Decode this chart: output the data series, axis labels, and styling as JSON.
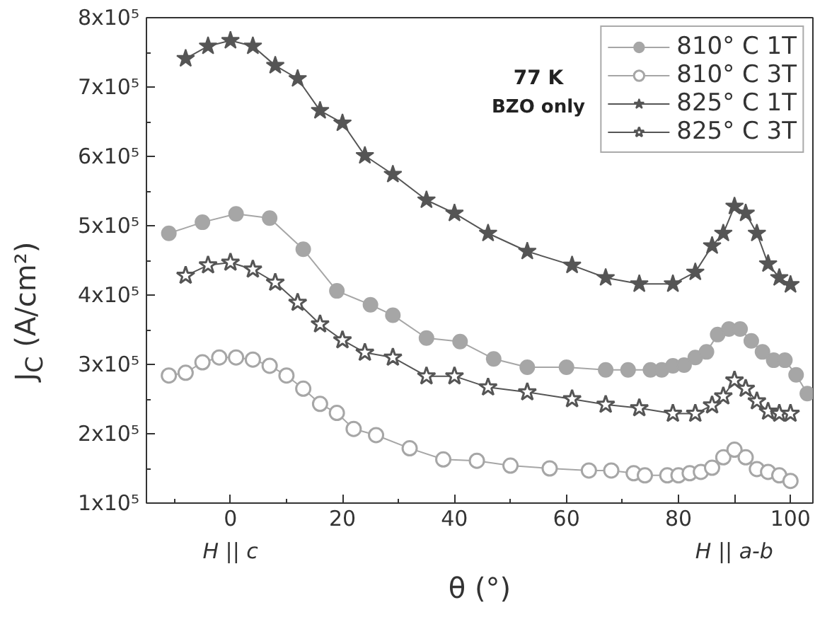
{
  "chart_data": {
    "type": "line",
    "xlabel": "θ (°)",
    "ylabel": "J$_{C}$ (A/cm²)",
    "xlim": [
      -15,
      104
    ],
    "ylim": [
      100000,
      800000
    ],
    "xticks": [
      0,
      20,
      40,
      60,
      80,
      100,
      {
        "value": 90,
        "label": null
      }
    ],
    "yticks": [
      {
        "value": 100000,
        "label": "1x10⁵"
      },
      {
        "value": 200000,
        "label": "2x10⁵"
      },
      {
        "value": 300000,
        "label": "3x10⁵"
      },
      {
        "value": 400000,
        "label": "4x10⁵"
      },
      {
        "value": 500000,
        "label": "5x10⁵"
      },
      {
        "value": 600000,
        "label": "6x10⁵"
      },
      {
        "value": 700000,
        "label": "7x10⁵"
      },
      {
        "value": 800000,
        "label": "8x10⁵"
      }
    ],
    "grid": false,
    "legend": "top right",
    "line_style": "solid",
    "annotations": [
      "77 K",
      "BZO only",
      "H || c",
      "H || a-b"
    ],
    "series": [
      {
        "name": "810° C 1T",
        "color": "#a6a6a6",
        "marker": "circle",
        "x": [
          -11,
          -5,
          1,
          7,
          13,
          19,
          25,
          29,
          35,
          41,
          47,
          53,
          60,
          67,
          71,
          75,
          77,
          79,
          81,
          83,
          85,
          87,
          89,
          91,
          93,
          95,
          97,
          99,
          101,
          103
        ],
        "values": [
          489000,
          505000,
          517000,
          511000,
          466000,
          406000,
          386000,
          371000,
          338000,
          333000,
          308000,
          296000,
          296000,
          292000,
          292000,
          292000,
          292000,
          298000,
          299000,
          310000,
          318000,
          343000,
          351000,
          351000,
          334000,
          318000,
          306000,
          306000,
          285000,
          258000
        ]
      },
      {
        "name": "810° C 3T",
        "color": "#a6a6a6",
        "marker": "circle-open",
        "x": [
          -11,
          -8,
          -5,
          -2,
          1,
          4,
          7,
          10,
          13,
          16,
          19,
          22,
          26,
          32,
          38,
          44,
          50,
          57,
          64,
          68,
          72,
          74,
          78,
          80,
          82,
          84,
          86,
          88,
          90,
          92,
          94,
          96,
          98,
          100
        ],
        "values": [
          284000,
          288000,
          303000,
          310000,
          310000,
          307000,
          298000,
          284000,
          265000,
          243000,
          230000,
          207000,
          198000,
          179000,
          163000,
          161000,
          154000,
          150000,
          147000,
          147000,
          143000,
          140000,
          140000,
          140000,
          143000,
          145000,
          151000,
          166000,
          177000,
          166000,
          149000,
          145000,
          140000,
          132000
        ]
      },
      {
        "name": "825° C 1T",
        "color": "#555555",
        "marker": "star",
        "x": [
          -8,
          -4,
          0,
          4,
          8,
          12,
          16,
          20,
          24,
          29,
          35,
          40,
          46,
          53,
          61,
          67,
          73,
          79,
          83,
          86,
          88,
          90,
          92,
          94,
          96,
          98,
          100
        ],
        "values": [
          741000,
          759000,
          767000,
          759000,
          731000,
          712000,
          666000,
          648000,
          601000,
          574000,
          537000,
          518000,
          489000,
          463000,
          443000,
          425000,
          416000,
          416000,
          433000,
          471000,
          489000,
          528000,
          518000,
          489000,
          445000,
          425000,
          415000
        ]
      },
      {
        "name": "825° C 3T",
        "color": "#555555",
        "marker": "star-open",
        "x": [
          -8,
          -4,
          0,
          4,
          8,
          12,
          16,
          20,
          24,
          29,
          35,
          40,
          46,
          53,
          61,
          67,
          73,
          79,
          83,
          86,
          88,
          90,
          92,
          94,
          96,
          98,
          100
        ],
        "values": [
          428000,
          443000,
          447000,
          437000,
          418000,
          389000,
          358000,
          335000,
          317000,
          310000,
          283000,
          283000,
          267000,
          260000,
          250000,
          242000,
          237000,
          229000,
          229000,
          241000,
          254000,
          277000,
          265000,
          247000,
          232000,
          229000,
          229000
        ]
      }
    ]
  }
}
